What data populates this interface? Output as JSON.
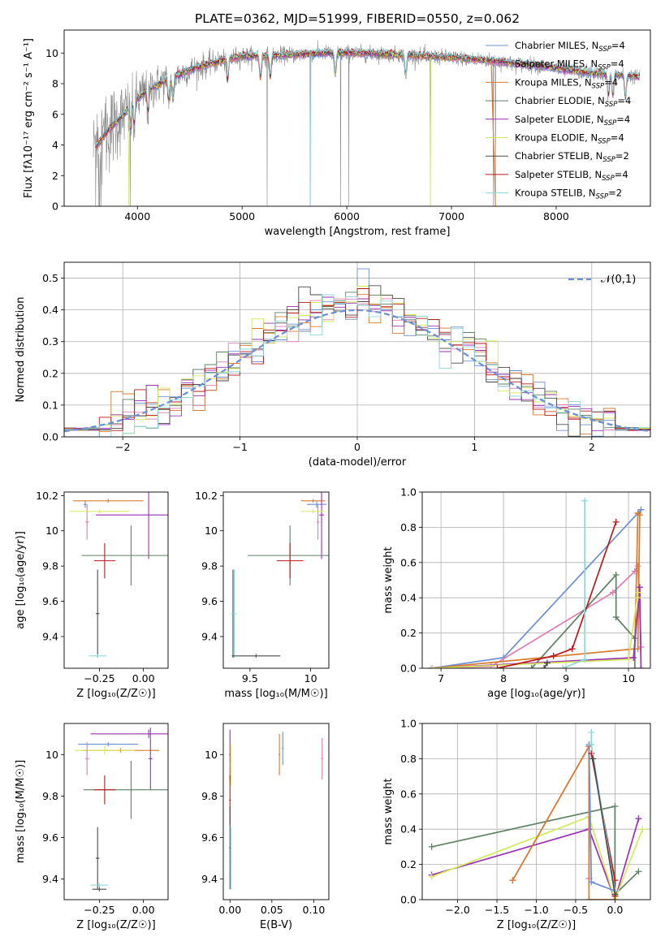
{
  "figure_title": "PLATE=0362, MJD=51999, FIBERID=0550, z=0.062",
  "colors": {
    "chabrier_miles": "#6b8fd6",
    "salpeter_miles": "#e07bb5",
    "kroupa_miles": "#d97b2b",
    "chabrier_elodie": "#5e8263",
    "salpeter_elodie": "#9a2fb5",
    "kroupa_elodie": "#d5ea5a",
    "chabrier_stelib": "#4a4a4a",
    "salpeter_stelib": "#b81a1a",
    "kroupa_stelib": "#8dd6dc",
    "data": "#8a8a8a",
    "gauss": "#6b8fd6"
  },
  "legend": [
    {
      "key": "chabrier_miles",
      "label": "Chabrier MILES, N_SSP=4"
    },
    {
      "key": "salpeter_miles",
      "label": "Salpeter MILES, N_SSP=4"
    },
    {
      "key": "kroupa_miles",
      "label": "Kroupa MILES, N_SSP=4"
    },
    {
      "key": "chabrier_elodie",
      "label": "Chabrier ELODIE, N_SSP=4"
    },
    {
      "key": "salpeter_elodie",
      "label": "Salpeter ELODIE, N_SSP=4"
    },
    {
      "key": "kroupa_elodie",
      "label": "Kroupa ELODIE, N_SSP=4"
    },
    {
      "key": "chabrier_stelib",
      "label": "Chabrier STELIB, N_SSP=2"
    },
    {
      "key": "salpeter_stelib",
      "label": "Salpeter STELIB, N_SSP=4"
    },
    {
      "key": "kroupa_stelib",
      "label": "Kroupa STELIB, N_SSP=2"
    }
  ],
  "chart_data": [
    {
      "id": "spectrum",
      "type": "line",
      "xlabel": "wavelength [Angstrom, rest frame]",
      "ylabel": "Flux [fλ10⁻¹⁷ erg cm⁻² s⁻¹ A⁻¹]",
      "xlim": [
        3300,
        8900
      ],
      "ylim": [
        0,
        11.5
      ],
      "xticks": [
        4000,
        5000,
        6000,
        7000,
        8000
      ],
      "yticks": [
        0,
        2,
        4,
        6,
        8,
        10
      ],
      "grid": false,
      "legend_position": "top-right",
      "continuum_knots": {
        "x": [
          3600,
          3700,
          3800,
          3900,
          4000,
          4100,
          4300,
          4500,
          4800,
          5000,
          5200,
          5500,
          5800,
          6000,
          6500,
          7000,
          7200,
          7400,
          7600,
          7800,
          8000,
          8200,
          8500,
          8900
        ],
        "y": [
          3.8,
          4.8,
          5.5,
          6.2,
          7.0,
          7.6,
          8.3,
          8.9,
          9.5,
          9.8,
          9.8,
          9.9,
          10.0,
          10.0,
          9.9,
          9.7,
          9.6,
          9.5,
          9.3,
          9.2,
          9.0,
          8.8,
          8.6,
          8.4
        ]
      },
      "absorption_lines": [
        3934,
        3969,
        4102,
        4300,
        4340,
        4861,
        5175,
        5270,
        5890,
        6563,
        8498,
        8542,
        8662
      ],
      "data_dips": [
        3930,
        5240,
        5650,
        5940,
        6020,
        6800,
        7400,
        7420
      ]
    },
    {
      "id": "residual_hist",
      "type": "histogram",
      "xlabel": "(data-model)/error",
      "ylabel": "Normed distribution",
      "xlim": [
        -2.5,
        2.5
      ],
      "ylim": [
        0,
        0.55
      ],
      "xticks": [
        -2,
        -1,
        0,
        1,
        2
      ],
      "yticks": [
        0.0,
        0.1,
        0.2,
        0.3,
        0.4,
        0.5
      ],
      "bin_width": 0.1,
      "grid": true,
      "gauss_label": "𝒩(0,1)",
      "legend_position": "top-right"
    },
    {
      "id": "age_vs_Z",
      "type": "errorbar",
      "xlabel": "Z [log₁₀(Z/Z☉)]",
      "ylabel": "age  [log₁₀(age/yr)]",
      "xlim": [
        -0.45,
        0.14
      ],
      "ylim": [
        9.22,
        10.22
      ],
      "xticks": [
        -0.25,
        0.0
      ],
      "xticklabels": [
        "−0.25",
        "0.00"
      ],
      "yticks": [
        9.4,
        9.6,
        9.8,
        10.0,
        10.2
      ],
      "grid": false,
      "points": [
        {
          "key": "chabrier_miles",
          "x": -0.33,
          "xerr": 0.01,
          "y": 10.15,
          "yerr": 0.02
        },
        {
          "key": "kroupa_miles",
          "x": -0.2,
          "xerr": 0.2,
          "y": 10.17,
          "yerr": 0.01
        },
        {
          "key": "salpeter_miles",
          "x": -0.32,
          "xerr": 0.01,
          "y": 10.05,
          "yerr": 0.1
        },
        {
          "key": "salpeter_elodie",
          "x": 0.03,
          "xerr": 0.3,
          "y": 10.09,
          "yerr": 0.25
        },
        {
          "key": "kroupa_elodie",
          "x": -0.25,
          "xerr": 0.17,
          "y": 10.11,
          "yerr": 0.01
        },
        {
          "key": "chabrier_elodie",
          "x": -0.07,
          "xerr": 0.28,
          "y": 9.86,
          "yerr": 0.17
        },
        {
          "key": "salpeter_stelib",
          "x": -0.22,
          "xerr": 0.06,
          "y": 9.83,
          "yerr": 0.1
        },
        {
          "key": "chabrier_stelib",
          "x": -0.26,
          "xerr": 0.01,
          "y": 9.53,
          "yerr": 0.25
        },
        {
          "key": "kroupa_stelib",
          "x": -0.26,
          "xerr": 0.05,
          "y": 9.29,
          "yerr": 0.01
        }
      ]
    },
    {
      "id": "age_vs_mass",
      "type": "errorbar",
      "xlabel": "mass [log₁₀(M/M☉)]",
      "ylabel": "",
      "xlim": [
        9.28,
        10.15
      ],
      "ylim": [
        9.22,
        10.22
      ],
      "xticks": [
        9.5,
        10.0
      ],
      "yticks": [
        9.4,
        9.6,
        9.8,
        10.0,
        10.2
      ],
      "grid": false,
      "points": [
        {
          "key": "kroupa_miles",
          "x": 10.02,
          "xerr": 0.1,
          "y": 10.17,
          "yerr": 0.01
        },
        {
          "key": "chabrier_miles",
          "x": 10.05,
          "xerr": 0.08,
          "y": 10.15,
          "yerr": 0.02
        },
        {
          "key": "salpeter_elodie",
          "x": 10.09,
          "xerr": 0.02,
          "y": 10.09,
          "yerr": 0.25
        },
        {
          "key": "salpeter_miles",
          "x": 10.06,
          "xerr": 0.01,
          "y": 10.05,
          "yerr": 0.1
        },
        {
          "key": "kroupa_elodie",
          "x": 10.02,
          "xerr": 0.1,
          "y": 10.11,
          "yerr": 0.01
        },
        {
          "key": "chabrier_elodie",
          "x": 9.83,
          "xerr": 0.35,
          "y": 9.86,
          "yerr": 0.17
        },
        {
          "key": "salpeter_stelib",
          "x": 9.83,
          "xerr": 0.11,
          "y": 9.83,
          "yerr": 0.1
        },
        {
          "key": "chabrier_stelib",
          "x": 9.36,
          "xerr": 0.01,
          "y": 9.53,
          "yerr": 0.25
        },
        {
          "key": "kroupa_stelib",
          "x": 9.37,
          "xerr": 0.02,
          "y": 9.53,
          "yerr": 0.25
        },
        {
          "key": "chabrier_stelib",
          "x": 9.55,
          "xerr": 0.2,
          "y": 9.29,
          "yerr": 0.01
        }
      ]
    },
    {
      "id": "weight_vs_age",
      "type": "line",
      "xlabel": "age  [log₁₀(age/yr)]",
      "ylabel": "mass weight",
      "xlim": [
        6.7,
        10.35
      ],
      "ylim": [
        0,
        1.0
      ],
      "xticks": [
        7,
        8,
        9,
        10
      ],
      "yticks": [
        0.0,
        0.2,
        0.4,
        0.6,
        0.8,
        1.0
      ],
      "grid": true,
      "series": [
        {
          "key": "chabrier_miles",
          "x": [
            6.85,
            8.0,
            10.15,
            10.2
          ],
          "y": [
            0.0,
            0.06,
            0.88,
            0.9
          ]
        },
        {
          "key": "salpeter_miles",
          "x": [
            6.85,
            7.8,
            9.75,
            10.1,
            10.15,
            10.2
          ],
          "y": [
            0.0,
            0.01,
            0.43,
            0.55,
            0.58,
            0.12
          ]
        },
        {
          "key": "kroupa_miles",
          "x": [
            6.85,
            10.1,
            10.15,
            10.18,
            10.15
          ],
          "y": [
            0.0,
            0.11,
            0.88,
            0.87,
            0.11
          ]
        },
        {
          "key": "chabrier_elodie",
          "x": [
            8.45,
            9.8,
            9.8,
            10.1,
            10.1
          ],
          "y": [
            0.0,
            0.53,
            0.29,
            0.17,
            0.0
          ]
        },
        {
          "key": "salpeter_elodie",
          "x": [
            6.85,
            10.08,
            10.18,
            10.2
          ],
          "y": [
            0.0,
            0.06,
            0.46,
            0.0
          ]
        },
        {
          "key": "kroupa_elodie",
          "x": [
            6.85,
            10.0,
            10.15,
            10.15
          ],
          "y": [
            0.0,
            0.05,
            0.43,
            0.4
          ]
        },
        {
          "key": "chabrier_stelib",
          "x": [
            8.65,
            8.7
          ],
          "y": [
            0.0,
            0.03
          ]
        },
        {
          "key": "salpeter_stelib",
          "x": [
            7.9,
            8.8,
            9.1,
            9.8
          ],
          "y": [
            0.0,
            0.07,
            0.11,
            0.83
          ]
        },
        {
          "key": "kroupa_stelib",
          "x": [
            8.95,
            9.3,
            9.3
          ],
          "y": [
            0.0,
            0.05,
            0.95
          ]
        }
      ]
    },
    {
      "id": "mass_vs_Z",
      "type": "errorbar",
      "xlabel": "Z [log₁₀(Z/Z☉)]",
      "ylabel": "mass [log₁₀(M/M☉)]",
      "xlim": [
        -0.45,
        0.14
      ],
      "ylim": [
        9.3,
        10.15
      ],
      "xticks": [
        -0.25,
        0.0
      ],
      "xticklabels": [
        "−0.25",
        "0.00"
      ],
      "yticks": [
        9.4,
        9.6,
        9.8,
        10.0
      ],
      "grid": false,
      "points": [
        {
          "key": "salpeter_elodie",
          "x": 0.03,
          "xerr": 0.33,
          "y": 10.1,
          "yerr": 0.02
        },
        {
          "key": "chabrier_miles",
          "x": -0.2,
          "xerr": 0.17,
          "y": 10.05,
          "yerr": 0.01
        },
        {
          "key": "kroupa_miles",
          "x": -0.13,
          "xerr": 0.22,
          "y": 10.02,
          "yerr": 0.01
        },
        {
          "key": "kroupa_elodie",
          "x": -0.22,
          "xerr": 0.17,
          "y": 10.02,
          "yerr": 0.02
        },
        {
          "key": "salpeter_miles",
          "x": -0.32,
          "xerr": 0.01,
          "y": 9.98,
          "yerr": 0.08
        },
        {
          "key": "salpeter_elodie",
          "x": 0.04,
          "xerr": 0.01,
          "y": 9.98,
          "yerr": 0.15
        },
        {
          "key": "chabrier_elodie",
          "x": -0.07,
          "xerr": 0.27,
          "y": 9.83,
          "yerr": 0.14
        },
        {
          "key": "salpeter_stelib",
          "x": -0.22,
          "xerr": 0.06,
          "y": 9.83,
          "yerr": 0.07
        },
        {
          "key": "chabrier_stelib",
          "x": -0.26,
          "xerr": 0.01,
          "y": 9.5,
          "yerr": 0.15
        },
        {
          "key": "kroupa_stelib",
          "x": -0.25,
          "xerr": 0.05,
          "y": 9.37,
          "yerr": 0.01
        },
        {
          "key": "chabrier_stelib",
          "x": -0.25,
          "xerr": 0.04,
          "y": 9.35,
          "yerr": 0.01
        }
      ]
    },
    {
      "id": "mass_vs_ebv",
      "type": "errorbar",
      "xlabel": "E(B-V)",
      "ylabel": "",
      "xlim": [
        -0.008,
        0.118
      ],
      "ylim": [
        9.3,
        10.15
      ],
      "xticks": [
        0.0,
        0.05,
        0.1
      ],
      "xticklabels": [
        "0.00",
        "0.05",
        "0.10"
      ],
      "yticks": [
        9.4,
        9.6,
        9.8,
        10.0
      ],
      "grid": false,
      "points": [
        {
          "key": "salpeter_elodie",
          "x": 0.0,
          "xerr": 0.001,
          "y": 10.0,
          "yerr": 0.12
        },
        {
          "key": "kroupa_elodie",
          "x": 0.001,
          "xerr": 0.001,
          "y": 9.95,
          "yerr": 0.1
        },
        {
          "key": "salpeter_stelib",
          "x": 0.0,
          "xerr": 0.001,
          "y": 9.78,
          "yerr": 0.12
        },
        {
          "key": "chabrier_stelib",
          "x": 0.0,
          "xerr": 0.001,
          "y": 9.55,
          "yerr": 0.2
        },
        {
          "key": "kroupa_stelib",
          "x": 0.001,
          "xerr": 0.001,
          "y": 9.5,
          "yerr": 0.15
        },
        {
          "key": "kroupa_miles",
          "x": 0.059,
          "xerr": 0.001,
          "y": 10.0,
          "yerr": 0.1
        },
        {
          "key": "chabrier_miles",
          "x": 0.063,
          "xerr": 0.001,
          "y": 10.03,
          "yerr": 0.08
        },
        {
          "key": "salpeter_miles",
          "x": 0.11,
          "xerr": 0.001,
          "y": 9.98,
          "yerr": 0.1
        }
      ]
    },
    {
      "id": "weight_vs_Z",
      "type": "line",
      "xlabel": "Z [log₁₀(Z/Z☉)]",
      "ylabel": "mass weight",
      "xlim": [
        -2.45,
        0.45
      ],
      "ylim": [
        0,
        1.0
      ],
      "xticks": [
        -2.0,
        -1.5,
        -1.0,
        -0.5,
        0.0
      ],
      "xticklabels": [
        "−2.0",
        "−1.5",
        "−1.0",
        "−0.5",
        "0.0"
      ],
      "yticks": [
        0.0,
        0.2,
        0.4,
        0.6,
        0.8,
        1.0
      ],
      "grid": true,
      "series": [
        {
          "key": "chabrier_elodie",
          "x": [
            -2.33,
            0.0,
            0.0,
            0.0,
            0.3
          ],
          "y": [
            0.3,
            0.53,
            0.0,
            0.03,
            0.16
          ]
        },
        {
          "key": "salpeter_elodie",
          "x": [
            -2.33,
            -0.33,
            0.0,
            0.3
          ],
          "y": [
            0.14,
            0.4,
            0.0,
            0.46
          ]
        },
        {
          "key": "kroupa_elodie",
          "x": [
            -2.33,
            -0.33,
            0.0,
            0.35
          ],
          "y": [
            0.13,
            0.47,
            0.0,
            0.4
          ]
        },
        {
          "key": "salpeter_miles",
          "x": [
            -1.3,
            -0.33,
            -0.33
          ],
          "y": [
            0.11,
            0.87,
            0.12
          ]
        },
        {
          "key": "kroupa_miles",
          "x": [
            -1.3,
            -0.33,
            -0.33,
            0.0
          ],
          "y": [
            0.11,
            0.87,
            0.0,
            0.0
          ]
        },
        {
          "key": "chabrier_miles",
          "x": [
            -0.33,
            -0.3,
            0.0
          ],
          "y": [
            0.88,
            0.1,
            0.05
          ]
        },
        {
          "key": "salpeter_stelib",
          "x": [
            -0.3,
            0.0,
            0.0
          ],
          "y": [
            0.83,
            0.11,
            0.02
          ]
        },
        {
          "key": "kroupa_stelib",
          "x": [
            -0.3,
            -0.3,
            0.0
          ],
          "y": [
            0.95,
            0.88,
            0.05
          ]
        },
        {
          "key": "chabrier_stelib",
          "x": [
            -0.28,
            0.0
          ],
          "y": [
            0.8,
            0.03
          ]
        }
      ]
    }
  ]
}
